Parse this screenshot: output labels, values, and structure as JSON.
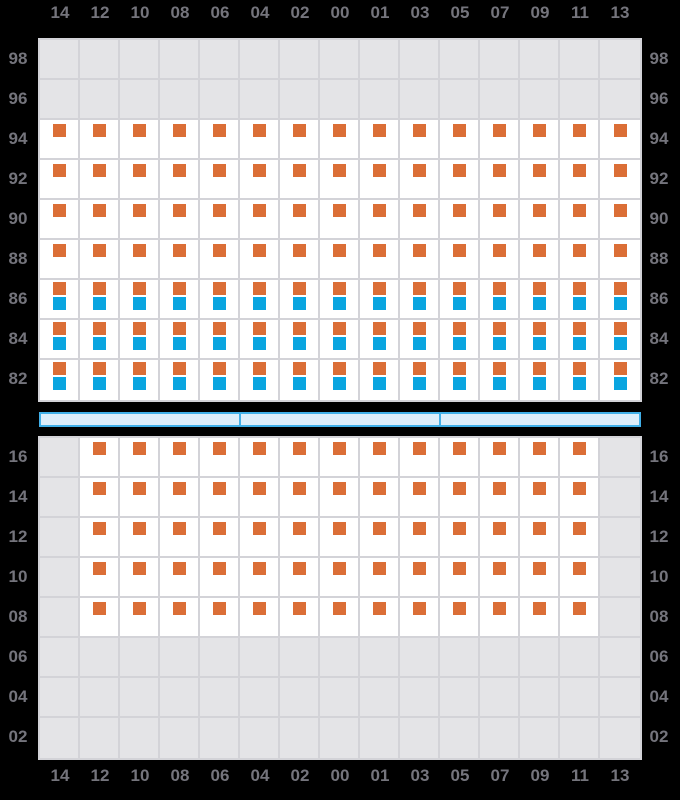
{
  "colors": {
    "background": "#000000",
    "panel_bg": "#e4e4e7",
    "grid_line": "#d3d3d8",
    "cell_bg": "#ffffff",
    "marker_orange": "#db6e36",
    "marker_blue": "#0aa5e0",
    "bar_border": "#41b0e9",
    "bar_fill": "#ddeefb",
    "label_text": "#74747c"
  },
  "chart_data": {
    "type": "heatmap",
    "title": "",
    "description": "Two stacked availability grid panels; cells marked with orange and/or blue square markers; numeric tick labels on all four sides; light blue 3-segment divider bar between panels",
    "x_tick_labels": [
      "14",
      "12",
      "10",
      "08",
      "06",
      "04",
      "02",
      "00",
      "01",
      "03",
      "05",
      "07",
      "09",
      "11",
      "13"
    ],
    "top_panel": {
      "row_labels": [
        "98",
        "96",
        "94",
        "92",
        "90",
        "88",
        "86",
        "84",
        "82"
      ],
      "rows": [
        {
          "label": "98",
          "cells": false,
          "col_start": 0,
          "col_end": -1,
          "markers": []
        },
        {
          "label": "96",
          "cells": false,
          "col_start": 0,
          "col_end": -1,
          "markers": []
        },
        {
          "label": "94",
          "cells": true,
          "col_start": 0,
          "col_end": 14,
          "markers": [
            "orange"
          ]
        },
        {
          "label": "92",
          "cells": true,
          "col_start": 0,
          "col_end": 14,
          "markers": [
            "orange"
          ]
        },
        {
          "label": "90",
          "cells": true,
          "col_start": 0,
          "col_end": 14,
          "markers": [
            "orange"
          ]
        },
        {
          "label": "88",
          "cells": true,
          "col_start": 0,
          "col_end": 14,
          "markers": [
            "orange"
          ]
        },
        {
          "label": "86",
          "cells": true,
          "col_start": 0,
          "col_end": 14,
          "markers": [
            "orange",
            "blue"
          ]
        },
        {
          "label": "84",
          "cells": true,
          "col_start": 0,
          "col_end": 14,
          "markers": [
            "orange",
            "blue"
          ]
        },
        {
          "label": "82",
          "cells": true,
          "col_start": 0,
          "col_end": 14,
          "markers": [
            "orange",
            "blue"
          ]
        }
      ]
    },
    "bottom_panel": {
      "row_labels": [
        "16",
        "14",
        "12",
        "10",
        "08",
        "06",
        "04",
        "02"
      ],
      "rows": [
        {
          "label": "16",
          "cells": true,
          "col_start": 1,
          "col_end": 13,
          "markers": [
            "orange"
          ]
        },
        {
          "label": "14",
          "cells": true,
          "col_start": 1,
          "col_end": 13,
          "markers": [
            "orange"
          ]
        },
        {
          "label": "12",
          "cells": true,
          "col_start": 1,
          "col_end": 13,
          "markers": [
            "orange"
          ]
        },
        {
          "label": "10",
          "cells": true,
          "col_start": 1,
          "col_end": 13,
          "markers": [
            "orange"
          ]
        },
        {
          "label": "08",
          "cells": true,
          "col_start": 1,
          "col_end": 13,
          "markers": [
            "orange"
          ]
        },
        {
          "label": "06",
          "cells": false,
          "col_start": 0,
          "col_end": -1,
          "markers": []
        },
        {
          "label": "04",
          "cells": false,
          "col_start": 0,
          "col_end": -1,
          "markers": []
        },
        {
          "label": "02",
          "cells": false,
          "col_start": 0,
          "col_end": -1,
          "markers": []
        }
      ]
    },
    "divider_bar": {
      "segments": 3
    }
  }
}
